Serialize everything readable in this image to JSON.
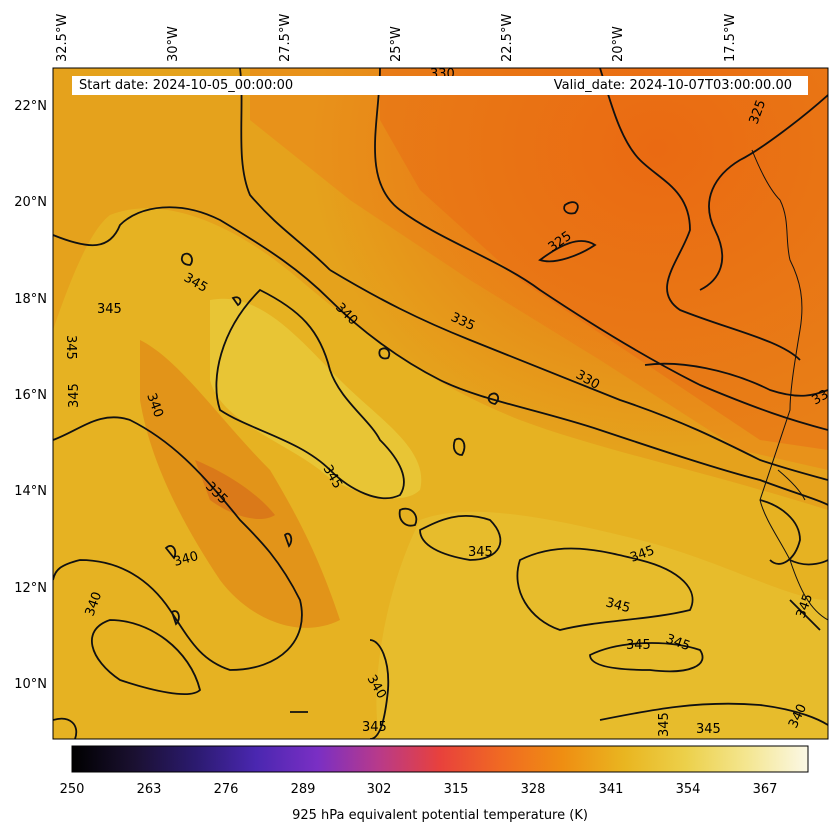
{
  "header": {
    "start_date": "Start date: 2024-10-05_00:00:00",
    "valid_date": "Valid_date: 2024-10-07T03:00:00.00"
  },
  "lon_ticks": [
    "32.5°W",
    "30°W",
    "27.5°W",
    "25°W",
    "22.5°W",
    "20°W",
    "17.5°W"
  ],
  "lat_ticks": [
    "22°N",
    "20°N",
    "18°N",
    "16°N",
    "14°N",
    "12°N",
    "10°N"
  ],
  "colorbar": {
    "label": "925 hPa equivalent potential temperature (K)",
    "ticks": [
      "250",
      "263",
      "276",
      "289",
      "302",
      "315",
      "328",
      "341",
      "354",
      "367"
    ],
    "colors": [
      "#000000",
      "#1a1030",
      "#2b1a6e",
      "#4a27b0",
      "#7a2fc4",
      "#b83a8a",
      "#e8413c",
      "#f06a22",
      "#ef8e12",
      "#e9b520",
      "#ecd04a",
      "#f4e690",
      "#fbf8e6"
    ]
  },
  "contour_labels": [
    "330",
    "325",
    "325",
    "345",
    "345",
    "340",
    "335",
    "345",
    "345",
    "340",
    "330",
    "33",
    "345",
    "335",
    "345",
    "345",
    "340",
    "340",
    "345",
    "345",
    "345",
    "345",
    "345",
    "340",
    "345",
    "345",
    "340"
  ]
}
